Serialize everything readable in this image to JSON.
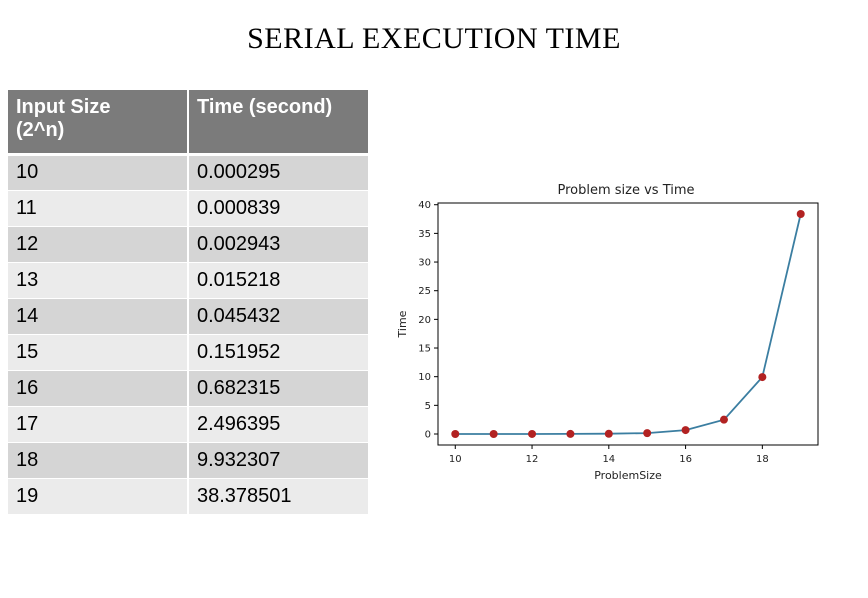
{
  "title": "SERIAL EXECUTION TIME",
  "table": {
    "headers": [
      "Input Size\n(2^n)",
      "Time (second)"
    ],
    "rows": [
      [
        "10",
        "0.000295"
      ],
      [
        "11",
        "0.000839"
      ],
      [
        "12",
        "0.002943"
      ],
      [
        "13",
        "0.015218"
      ],
      [
        "14",
        "0.045432"
      ],
      [
        "15",
        "0.151952"
      ],
      [
        "16",
        "0.682315"
      ],
      [
        "17",
        "2.496395"
      ],
      [
        "18",
        "9.932307"
      ],
      [
        "19",
        "38.378501"
      ]
    ]
  },
  "chart_data": {
    "type": "line",
    "title": "Problem size vs Time",
    "xlabel": "ProblemSize",
    "ylabel": "Time",
    "x": [
      10,
      11,
      12,
      13,
      14,
      15,
      16,
      17,
      18,
      19
    ],
    "series": [
      {
        "values": [
          0.000295,
          0.000839,
          0.002943,
          0.015218,
          0.045432,
          0.151952,
          0.682315,
          2.496395,
          9.932307,
          38.378501
        ]
      }
    ],
    "xlim": [
      9.55,
      19.45
    ],
    "ylim": [
      -1.92,
      40.3
    ],
    "xticks": [
      10,
      12,
      14,
      16,
      18
    ],
    "yticks": [
      0,
      5,
      10,
      15,
      20,
      25,
      30,
      35,
      40
    ],
    "grid": false,
    "line_color": "#3b7ea1",
    "marker_color": "#b22222"
  }
}
